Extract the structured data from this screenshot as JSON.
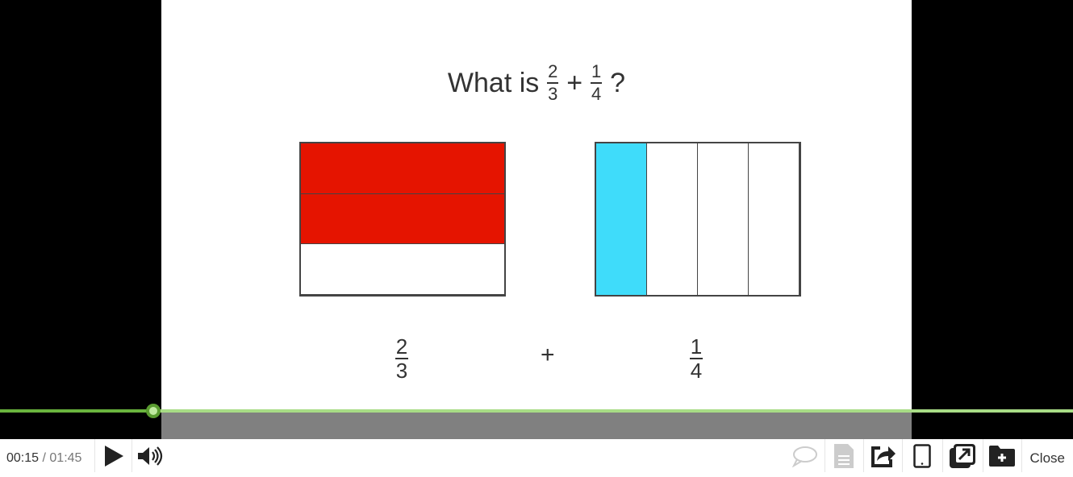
{
  "slide": {
    "title_prefix": "What is",
    "frac1": {
      "num": "2",
      "den": "3"
    },
    "plus": "+",
    "frac2": {
      "num": "1",
      "den": "4"
    },
    "suffix": "?",
    "left_model": {
      "parts": 3,
      "shaded": 2,
      "color": "#e51400"
    },
    "right_model": {
      "parts": 4,
      "shaded": 1,
      "color": "#3fdcfa"
    },
    "bottom": {
      "left": {
        "num": "2",
        "den": "3"
      },
      "plus": "+",
      "right": {
        "num": "1",
        "den": "4"
      }
    }
  },
  "player": {
    "current_time": "00:15",
    "separator": " / ",
    "duration": "01:45",
    "progress_percent": 14.3,
    "played_color": "#6ab43e",
    "track_color": "#a8dc86",
    "close_label": "Close",
    "icons": [
      "play-icon",
      "volume-icon",
      "comment-icon",
      "transcript-icon",
      "share-icon",
      "tablet-icon",
      "popout-icon",
      "add-to-folder-icon"
    ]
  }
}
